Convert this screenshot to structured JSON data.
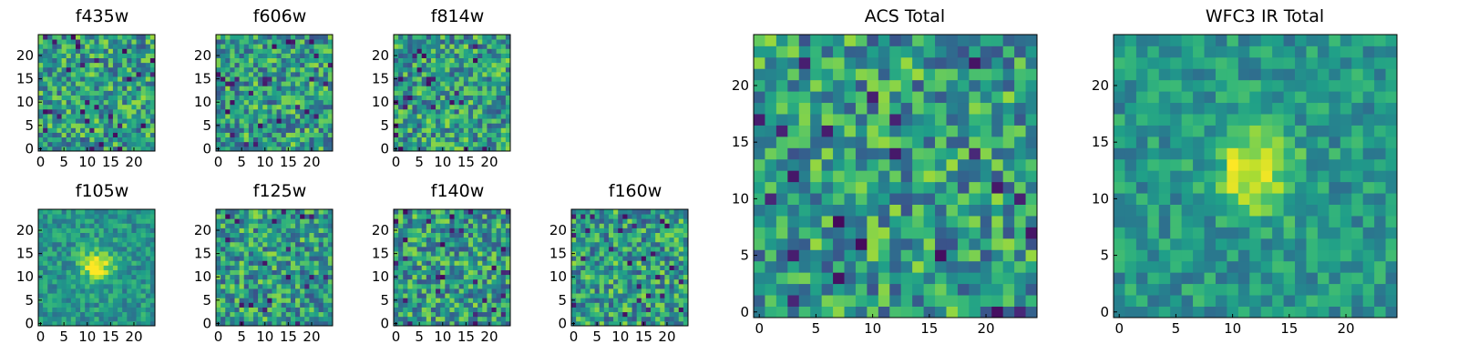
{
  "figure": {
    "background": "#ffffff",
    "colormap": "viridis"
  },
  "chart_data": [
    {
      "type": "heatmap",
      "title": "f435w",
      "size": [
        25,
        25
      ],
      "xlim": [
        0,
        24
      ],
      "ylim": [
        0,
        24
      ],
      "xticks": [
        0,
        5,
        10,
        15,
        20
      ],
      "yticks": [
        0,
        5,
        10,
        15,
        20
      ],
      "value_pattern": "noise",
      "seed": 11
    },
    {
      "type": "heatmap",
      "title": "f606w",
      "size": [
        25,
        25
      ],
      "xlim": [
        0,
        24
      ],
      "ylim": [
        0,
        24
      ],
      "xticks": [
        0,
        5,
        10,
        15,
        20
      ],
      "yticks": [
        0,
        5,
        10,
        15,
        20
      ],
      "value_pattern": "noise",
      "seed": 23
    },
    {
      "type": "heatmap",
      "title": "f814w",
      "size": [
        25,
        25
      ],
      "xlim": [
        0,
        24
      ],
      "ylim": [
        0,
        24
      ],
      "xticks": [
        0,
        5,
        10,
        15,
        20
      ],
      "yticks": [
        0,
        5,
        10,
        15,
        20
      ],
      "value_pattern": "noise",
      "seed": 37
    },
    {
      "type": "heatmap",
      "title": "f105w",
      "size": [
        25,
        25
      ],
      "xlim": [
        0,
        24
      ],
      "ylim": [
        0,
        24
      ],
      "xticks": [
        0,
        5,
        10,
        15,
        20
      ],
      "yticks": [
        0,
        5,
        10,
        15,
        20
      ],
      "value_pattern": "central source near (12, 12)",
      "seed": 41
    },
    {
      "type": "heatmap",
      "title": "f125w",
      "size": [
        25,
        25
      ],
      "xlim": [
        0,
        24
      ],
      "ylim": [
        0,
        24
      ],
      "xticks": [
        0,
        5,
        10,
        15,
        20
      ],
      "yticks": [
        0,
        5,
        10,
        15,
        20
      ],
      "value_pattern": "noise",
      "seed": 53
    },
    {
      "type": "heatmap",
      "title": "f140w",
      "size": [
        25,
        25
      ],
      "xlim": [
        0,
        24
      ],
      "ylim": [
        0,
        24
      ],
      "xticks": [
        0,
        5,
        10,
        15,
        20
      ],
      "yticks": [
        0,
        5,
        10,
        15,
        20
      ],
      "value_pattern": "noise",
      "seed": 67
    },
    {
      "type": "heatmap",
      "title": "f160w",
      "size": [
        25,
        25
      ],
      "xlim": [
        0,
        24
      ],
      "ylim": [
        0,
        24
      ],
      "xticks": [
        0,
        5,
        10,
        15,
        20
      ],
      "yticks": [
        0,
        5,
        10,
        15,
        20
      ],
      "value_pattern": "noise",
      "seed": 71
    },
    {
      "type": "heatmap",
      "title": "ACS Total",
      "size": [
        25,
        25
      ],
      "xlim": [
        0,
        24
      ],
      "ylim": [
        0,
        24
      ],
      "xticks": [
        0,
        5,
        10,
        15,
        20
      ],
      "yticks": [
        0,
        5,
        10,
        15,
        20
      ],
      "value_pattern": "noise with several minima",
      "seed": 83
    },
    {
      "type": "heatmap",
      "title": "WFC3 IR Total",
      "size": [
        25,
        25
      ],
      "xlim": [
        0,
        24
      ],
      "ylim": [
        0,
        24
      ],
      "xticks": [
        0,
        5,
        10,
        15,
        20
      ],
      "yticks": [
        0,
        5,
        10,
        15,
        20
      ],
      "value_pattern": "central source near (12, 13)",
      "seed": 97
    }
  ]
}
